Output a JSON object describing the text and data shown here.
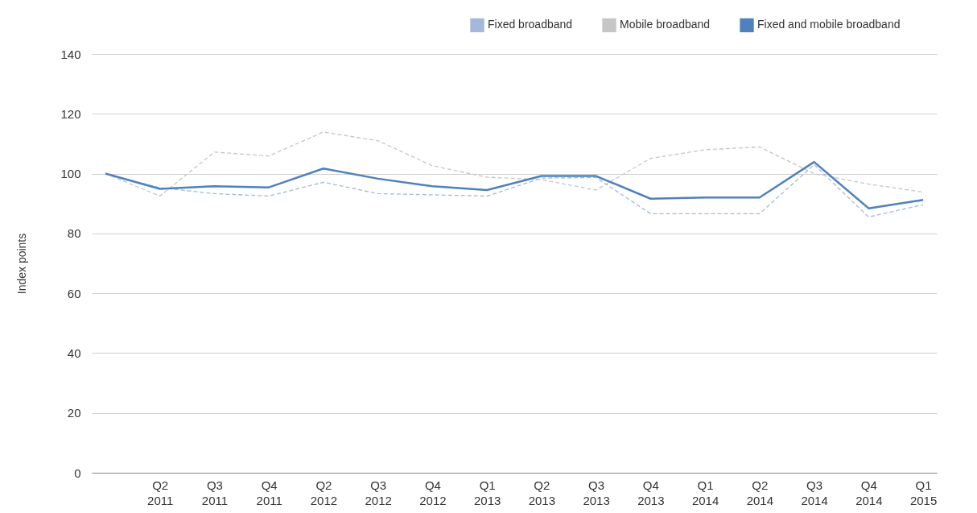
{
  "chart_data": {
    "type": "line",
    "categories": [
      null,
      "Q2 2011",
      "Q3 2011",
      "Q4 2011",
      "Q2 2012",
      "Q3 2012",
      "Q4 2012",
      "Q1 2013",
      "Q2 2013",
      "Q3 2013",
      "Q4 2013",
      "Q1 2014",
      "Q2 2014",
      "Q3 2014",
      "Q4 2014",
      "Q1 2015"
    ],
    "ylabel": "Index points",
    "ylim": [
      0,
      140
    ],
    "yticks": [
      0,
      20,
      40,
      60,
      80,
      100,
      120,
      140
    ],
    "grid": "y",
    "legend": "top right",
    "marker": "none",
    "series": [
      {
        "name": "Fixed broadband",
        "color": "#a4b8dc",
        "line_style": "dashed",
        "values": [
          100,
          95.3,
          93.3,
          92.5,
          97.1,
          93.3,
          92.9,
          92.5,
          98.5,
          98.7,
          86.6,
          86.6,
          86.6,
          103.0,
          85.5,
          89.6
        ]
      },
      {
        "name": "Mobile broadband",
        "color": "#c6c6c6",
        "line_style": "dashed",
        "values": [
          100,
          92.5,
          107.2,
          105.9,
          113.9,
          111.0,
          102.6,
          98.8,
          98.0,
          94.5,
          105.1,
          108.0,
          108.9,
          100,
          96.5,
          93.8
        ]
      },
      {
        "name": "Fixed and mobile broadband",
        "color": "#4f81bd",
        "line_style": "solid",
        "values": [
          100,
          94.9,
          95.8,
          95.4,
          101.7,
          98.3,
          95.8,
          94.5,
          99.2,
          99.2,
          91.6,
          92.0,
          92.0,
          103.9,
          88.4,
          91.2
        ]
      }
    ]
  }
}
